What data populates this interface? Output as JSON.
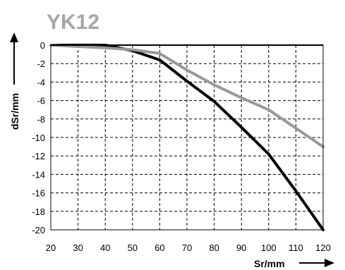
{
  "chart_data": {
    "type": "line",
    "title": "YK12",
    "xlabel": "Sr/mm",
    "ylabel": "dSr/mm",
    "xlim": [
      20,
      120
    ],
    "ylim": [
      -20,
      0
    ],
    "xticks": [
      "20",
      "30",
      "40",
      "50",
      "60",
      "70",
      "80",
      "90",
      "100",
      "110",
      "120"
    ],
    "yticks": [
      "0",
      "-2",
      "-4",
      "-6",
      "-8",
      "-10",
      "-12",
      "-14",
      "-16",
      "-18",
      "-20"
    ],
    "grid": true,
    "series": [
      {
        "color": "#000000",
        "x": [
          20,
          40,
          50,
          60,
          70,
          80,
          90,
          100,
          110,
          120
        ],
        "y": [
          0,
          0,
          -0.6,
          -1.6,
          -3.9,
          -6.1,
          -8.9,
          -11.8,
          -15.8,
          -20
        ]
      },
      {
        "color": "#999999",
        "x": [
          20,
          40,
          50,
          60,
          70,
          80,
          90,
          100,
          110,
          120
        ],
        "y": [
          0,
          -0.3,
          -0.5,
          -0.9,
          -2.7,
          -4.3,
          -5.7,
          -7.0,
          -9.0,
          -11.0
        ]
      }
    ]
  }
}
